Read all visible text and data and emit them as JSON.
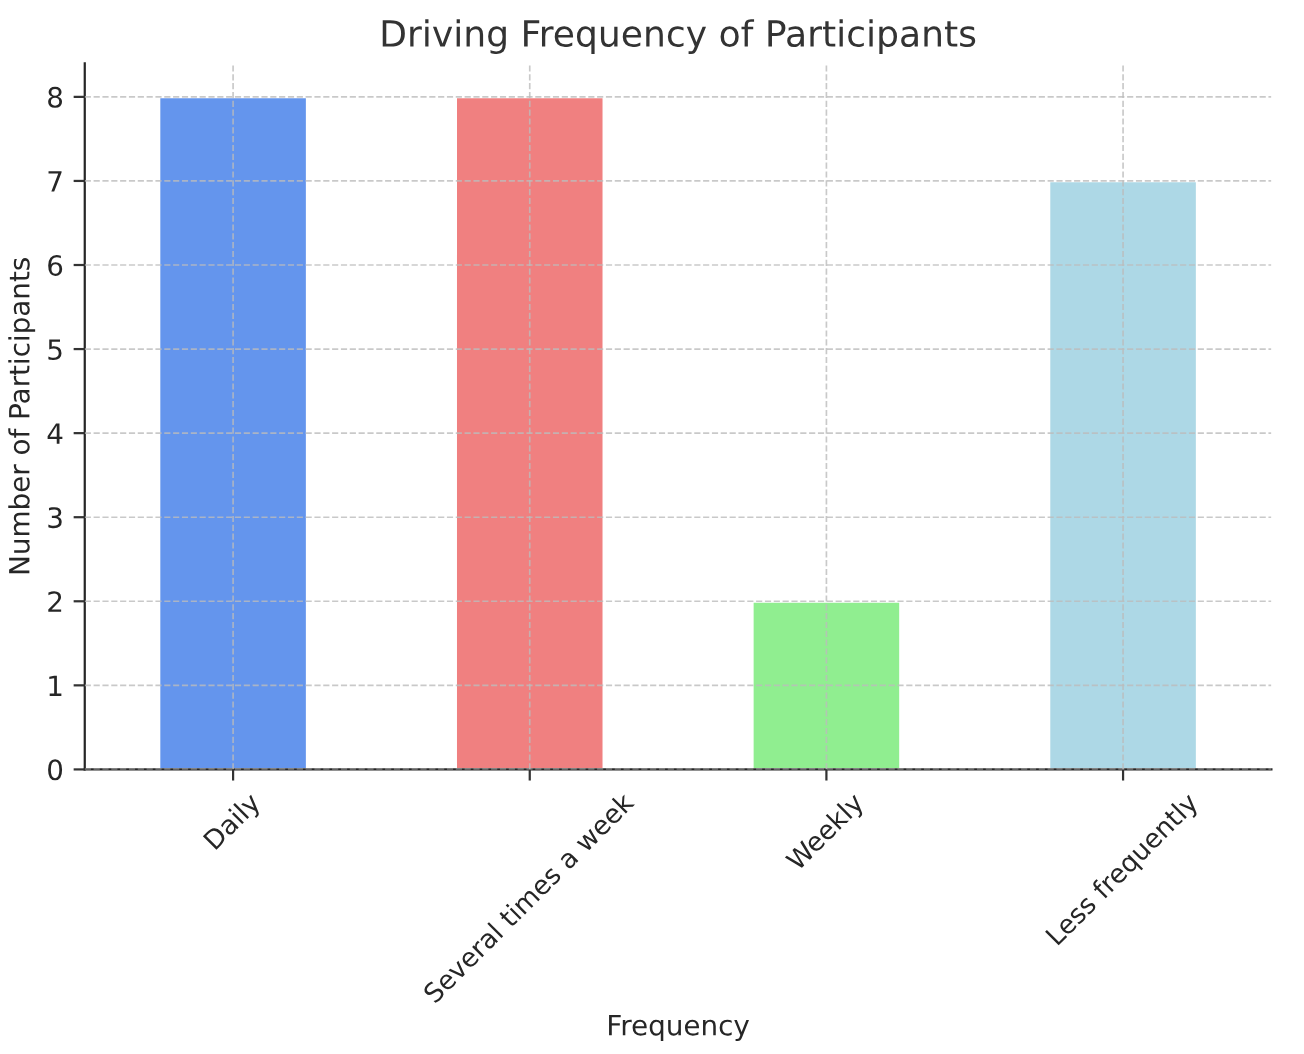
{
  "chart_data": {
    "type": "bar",
    "title": "Driving Frequency of Participants",
    "xlabel": "Frequency",
    "ylabel": "Number of Participants",
    "categories": [
      "Daily",
      "Several times a week",
      "Weekly",
      "Less frequently"
    ],
    "values": [
      8,
      8,
      2,
      7
    ],
    "colors": [
      "#6495ed",
      "#f08080",
      "#90ee90",
      "#add8e6"
    ],
    "ylim": [
      0,
      8.4
    ],
    "yticks": [
      0,
      1,
      2,
      3,
      4,
      5,
      6,
      7,
      8
    ],
    "grid": true,
    "legend": false
  }
}
